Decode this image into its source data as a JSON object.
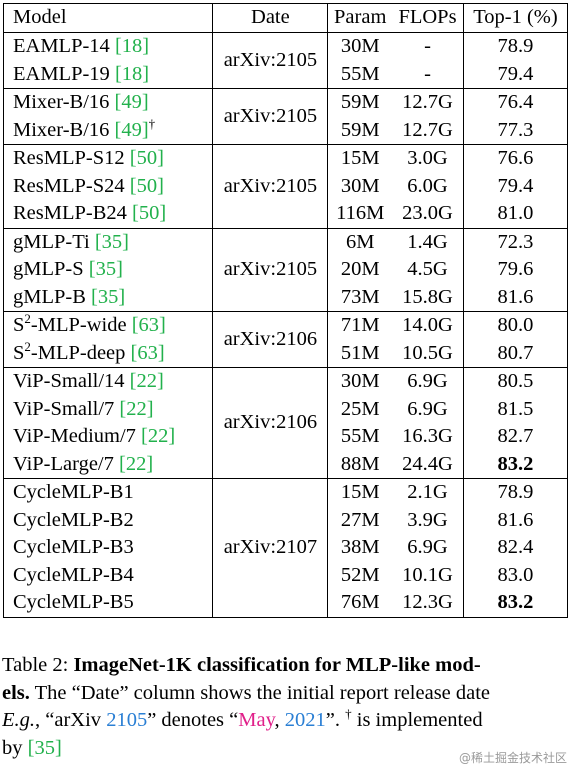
{
  "table": {
    "headers": {
      "model": "Model",
      "date": "Date",
      "param": "Param",
      "flops": "FLOPs",
      "top1": "Top-1 (%)"
    },
    "groups": [
      {
        "date": "arXiv:2105",
        "rows": [
          {
            "name": "EAMLP-14 ",
            "ref": "[18]",
            "param": "30M",
            "flops": "-",
            "top1": "78.9"
          },
          {
            "name": "EAMLP-19 ",
            "ref": "[18]",
            "param": "55M",
            "flops": "-",
            "top1": "79.4"
          }
        ]
      },
      {
        "date": "arXiv:2105",
        "rows": [
          {
            "name": "Mixer-B/16 ",
            "ref": "[49]",
            "param": "59M",
            "flops": "12.7G",
            "top1": "76.4"
          },
          {
            "name": "Mixer-B/16 ",
            "ref": "[49]",
            "mark": "†",
            "param": "59M",
            "flops": "12.7G",
            "top1": "77.3"
          }
        ]
      },
      {
        "date": "arXiv:2105",
        "rows": [
          {
            "name": "ResMLP-S12 ",
            "ref": "[50]",
            "param": "15M",
            "flops": "3.0G",
            "top1": "76.6"
          },
          {
            "name": "ResMLP-S24 ",
            "ref": "[50]",
            "param": "30M",
            "flops": "6.0G",
            "top1": "79.4"
          },
          {
            "name": "ResMLP-B24 ",
            "ref": "[50]",
            "param": "116M",
            "flops": "23.0G",
            "top1": "81.0"
          }
        ]
      },
      {
        "date": "arXiv:2105",
        "rows": [
          {
            "name": "gMLP-Ti ",
            "ref": "[35]",
            "param": "6M",
            "flops": "1.4G",
            "top1": "72.3"
          },
          {
            "name": "gMLP-S ",
            "ref": "[35]",
            "param": "20M",
            "flops": "4.5G",
            "top1": "79.6"
          },
          {
            "name": "gMLP-B ",
            "ref": "[35]",
            "param": "73M",
            "flops": "15.8G",
            "top1": "81.6"
          }
        ]
      },
      {
        "date": "arXiv:2106",
        "rows": [
          {
            "pre": "S",
            "sup": "2",
            "name": "-MLP-wide ",
            "ref": "[63]",
            "param": "71M",
            "flops": "14.0G",
            "top1": "80.0"
          },
          {
            "pre": "S",
            "sup": "2",
            "name": "-MLP-deep ",
            "ref": "[63]",
            "param": "51M",
            "flops": "10.5G",
            "top1": "80.7"
          }
        ]
      },
      {
        "date": "arXiv:2106",
        "rows": [
          {
            "name": "ViP-Small/14 ",
            "ref": "[22]",
            "param": "30M",
            "flops": "6.9G",
            "top1": "80.5"
          },
          {
            "name": "ViP-Small/7 ",
            "ref": "[22]",
            "param": "25M",
            "flops": "6.9G",
            "top1": "81.5"
          },
          {
            "name": "ViP-Medium/7 ",
            "ref": "[22]",
            "param": "55M",
            "flops": "16.3G",
            "top1": "82.7"
          },
          {
            "name": "ViP-Large/7 ",
            "ref": "[22]",
            "param": "88M",
            "flops": "24.4G",
            "top1": "83.2",
            "bold": true
          }
        ]
      },
      {
        "date": "arXiv:2107",
        "rows": [
          {
            "name": "CycleMLP-B1",
            "ref": "",
            "param": "15M",
            "flops": "2.1G",
            "top1": "78.9"
          },
          {
            "name": "CycleMLP-B2",
            "ref": "",
            "param": "27M",
            "flops": "3.9G",
            "top1": "81.6"
          },
          {
            "name": "CycleMLP-B3",
            "ref": "",
            "param": "38M",
            "flops": "6.9G",
            "top1": "82.4"
          },
          {
            "name": "CycleMLP-B4",
            "ref": "",
            "param": "52M",
            "flops": "10.1G",
            "top1": "83.0"
          },
          {
            "name": "CycleMLP-B5",
            "ref": "",
            "param": "76M",
            "flops": "12.3G",
            "top1": "83.2",
            "bold": true
          }
        ]
      }
    ]
  },
  "caption": {
    "label": "Table 2: ",
    "bold_line1": "ImageNet-1K classification for MLP-like mod-",
    "bold_line2": "els.",
    "line2_rest": " The “Date” column shows the initial report release date",
    "line3_eg": "E.g.",
    "line3_a": ", “arXiv ",
    "line3_2105": "2105",
    "line3_b": "” denotes “",
    "line3_may": "May",
    "line3_c": ", ",
    "line3_2021": "2021",
    "line3_d": "”. ",
    "line3_dagger": "†",
    "line3_e": " is implemented",
    "line4_a": "by ",
    "line4_ref": "[35]"
  },
  "watermark": "@稀土掘金技术社区"
}
